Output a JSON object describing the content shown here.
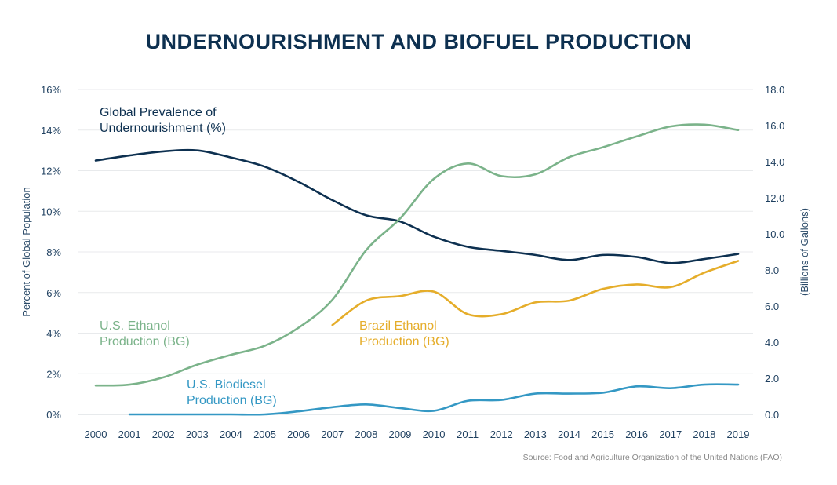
{
  "chart_data": {
    "type": "line",
    "title": "UNDERNOURISHMENT AND BIOFUEL PRODUCTION",
    "source": "Source: Food and Agriculture Organization of the United Nations (FAO)",
    "x": [
      2000,
      2001,
      2002,
      2003,
      2004,
      2005,
      2006,
      2007,
      2008,
      2009,
      2010,
      2011,
      2012,
      2013,
      2014,
      2015,
      2016,
      2017,
      2018,
      2019
    ],
    "x_ticks": [
      "2000",
      "2001",
      "2002",
      "2003",
      "2004",
      "2005",
      "2006",
      "2007",
      "2008",
      "2009",
      "2010",
      "2011",
      "2012",
      "2013",
      "2014",
      "2015",
      "2016",
      "2017",
      "2018",
      "2019"
    ],
    "y_left": {
      "label": "Percent of Global Population",
      "range": [
        0,
        16
      ],
      "ticks": [
        "0%",
        "2%",
        "4%",
        "6%",
        "8%",
        "10%",
        "12%",
        "14%",
        "16%"
      ]
    },
    "y_right": {
      "label": "(Billions of Gallons)",
      "range": [
        0,
        18
      ],
      "ticks": [
        "0.0",
        "2.0",
        "4.0",
        "6.0",
        "8.0",
        "10.0",
        "12.0",
        "14.0",
        "16.0",
        "18.0"
      ]
    },
    "grid": true,
    "series": [
      {
        "name": "Global Prevalence of Undernourishment (%)",
        "axis": "left",
        "color": "#0d3050",
        "values": [
          12.5,
          12.75,
          12.95,
          13.0,
          12.65,
          12.2,
          11.45,
          10.55,
          9.8,
          9.5,
          8.75,
          8.25,
          8.05,
          7.85,
          7.6,
          7.85,
          7.75,
          7.45,
          7.65,
          7.9
        ]
      },
      {
        "name": "U.S. Ethanol Production (BG)",
        "axis": "right",
        "color": "#7bb38a",
        "values": [
          1.6,
          1.65,
          2.05,
          2.75,
          3.3,
          3.8,
          4.8,
          6.35,
          9.1,
          10.85,
          13.05,
          13.9,
          13.2,
          13.3,
          14.25,
          14.8,
          15.4,
          15.95,
          16.05,
          15.75
        ]
      },
      {
        "name": "Brazil Ethanol Production (BG)",
        "axis": "right",
        "color": "#e5ad2a",
        "values": [
          null,
          null,
          null,
          null,
          null,
          null,
          null,
          4.95,
          6.3,
          6.55,
          6.8,
          5.55,
          5.55,
          6.2,
          6.3,
          6.95,
          7.2,
          7.05,
          7.85,
          8.5
        ]
      },
      {
        "name": "U.S. Biodiesel Production (BG)",
        "axis": "right",
        "color": "#3498c4",
        "values": [
          null,
          0,
          0,
          0,
          0,
          0,
          0.17,
          0.4,
          0.55,
          0.35,
          0.2,
          0.75,
          0.8,
          1.15,
          1.15,
          1.2,
          1.55,
          1.45,
          1.65,
          1.65
        ]
      }
    ]
  }
}
